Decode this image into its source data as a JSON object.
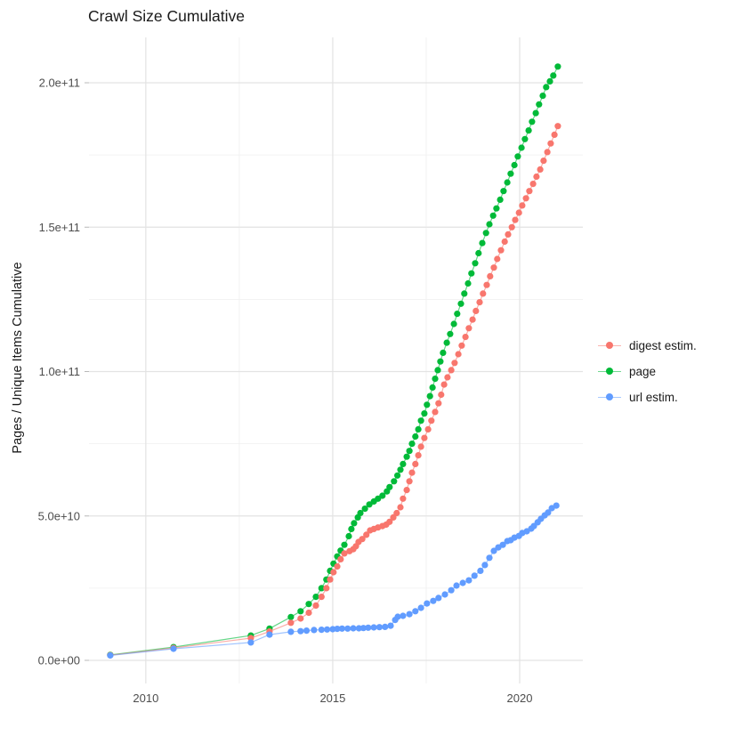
{
  "chart_data": {
    "type": "scatter",
    "title": "Crawl Size Cumulative",
    "xlabel": "",
    "ylabel": "Pages / Unique Items Cumulative",
    "legend_position": "right",
    "grid": true,
    "background": "#ffffff",
    "x_ticks": [
      2010,
      2015,
      2020
    ],
    "x_tick_labels": [
      "2010",
      "2015",
      "2020"
    ],
    "x_minor_ticks": [
      2012.5,
      2017.5
    ],
    "y_ticks_billions": [
      0,
      50,
      100,
      150,
      200
    ],
    "y_tick_labels": [
      "0.0e+00",
      "5.0e+10",
      "1.0e+11",
      "1.5e+11",
      "2.0e+11"
    ],
    "y_minor_ticks_billions": [
      25,
      75,
      125,
      175
    ],
    "xlim": [
      2008.48,
      2021.69
    ],
    "ylim_billions": [
      -6.16,
      215.72
    ],
    "y_unit": "billions (multiply by 1e9 for axis values)",
    "z_order": [
      "page",
      "digest estim.",
      "url estim."
    ],
    "series": [
      {
        "name": "digest estim.",
        "color": "#F8766D",
        "points_year_billion": [
          [
            2009.05,
            1.8
          ],
          [
            2010.74,
            4.3
          ],
          [
            2012.81,
            7.7
          ],
          [
            2013.31,
            10
          ],
          [
            2013.88,
            13
          ],
          [
            2014.14,
            14.5
          ],
          [
            2014.36,
            16.5
          ],
          [
            2014.55,
            19
          ],
          [
            2014.7,
            22
          ],
          [
            2014.83,
            25
          ],
          [
            2014.93,
            28
          ],
          [
            2015.02,
            30.5
          ],
          [
            2015.12,
            32.5
          ],
          [
            2015.21,
            35
          ],
          [
            2015.31,
            37
          ],
          [
            2015.45,
            37.8
          ],
          [
            2015.55,
            38.5
          ],
          [
            2015.62,
            39.5
          ],
          [
            2015.69,
            41
          ],
          [
            2015.79,
            42
          ],
          [
            2015.9,
            43.5
          ],
          [
            2016.0,
            45
          ],
          [
            2016.1,
            45.5
          ],
          [
            2016.21,
            46
          ],
          [
            2016.33,
            46.5
          ],
          [
            2016.43,
            47
          ],
          [
            2016.52,
            48
          ],
          [
            2016.62,
            49.5
          ],
          [
            2016.71,
            51
          ],
          [
            2016.81,
            53
          ],
          [
            2016.88,
            56
          ],
          [
            2016.98,
            59
          ],
          [
            2017.05,
            62
          ],
          [
            2017.12,
            65
          ],
          [
            2017.21,
            68
          ],
          [
            2017.29,
            71
          ],
          [
            2017.36,
            74
          ],
          [
            2017.45,
            77
          ],
          [
            2017.55,
            80
          ],
          [
            2017.64,
            83
          ],
          [
            2017.74,
            86
          ],
          [
            2017.83,
            89
          ],
          [
            2017.9,
            92
          ],
          [
            2017.98,
            95.5
          ],
          [
            2018.07,
            98
          ],
          [
            2018.17,
            100.5
          ],
          [
            2018.26,
            103
          ],
          [
            2018.36,
            106
          ],
          [
            2018.45,
            109
          ],
          [
            2018.55,
            112
          ],
          [
            2018.64,
            115
          ],
          [
            2018.74,
            118
          ],
          [
            2018.83,
            121
          ],
          [
            2018.93,
            124
          ],
          [
            2019.02,
            127
          ],
          [
            2019.12,
            130
          ],
          [
            2019.21,
            133
          ],
          [
            2019.31,
            136
          ],
          [
            2019.4,
            139
          ],
          [
            2019.5,
            142
          ],
          [
            2019.6,
            145
          ],
          [
            2019.69,
            147.5
          ],
          [
            2019.79,
            150
          ],
          [
            2019.88,
            152.5
          ],
          [
            2019.98,
            155
          ],
          [
            2020.07,
            157.5
          ],
          [
            2020.17,
            160
          ],
          [
            2020.26,
            162.5
          ],
          [
            2020.36,
            165
          ],
          [
            2020.45,
            167.5
          ],
          [
            2020.55,
            170
          ],
          [
            2020.64,
            173
          ],
          [
            2020.74,
            176
          ],
          [
            2020.83,
            179
          ],
          [
            2020.93,
            182
          ],
          [
            2021.02,
            185
          ]
        ]
      },
      {
        "name": "page",
        "color": "#00BA38",
        "points_year_billion": [
          [
            2009.05,
            1.9
          ],
          [
            2010.74,
            4.6
          ],
          [
            2012.81,
            8.6
          ],
          [
            2013.31,
            11
          ],
          [
            2013.88,
            15
          ],
          [
            2014.14,
            17
          ],
          [
            2014.36,
            19.5
          ],
          [
            2014.55,
            22
          ],
          [
            2014.7,
            25
          ],
          [
            2014.83,
            28
          ],
          [
            2014.93,
            31
          ],
          [
            2015.02,
            33.5
          ],
          [
            2015.12,
            36
          ],
          [
            2015.21,
            38
          ],
          [
            2015.31,
            40
          ],
          [
            2015.43,
            43
          ],
          [
            2015.5,
            45.5
          ],
          [
            2015.57,
            47.5
          ],
          [
            2015.67,
            49.5
          ],
          [
            2015.74,
            51
          ],
          [
            2015.86,
            52.5
          ],
          [
            2015.98,
            54
          ],
          [
            2016.1,
            55
          ],
          [
            2016.21,
            56
          ],
          [
            2016.33,
            57
          ],
          [
            2016.45,
            58.5
          ],
          [
            2016.52,
            60
          ],
          [
            2016.64,
            62
          ],
          [
            2016.73,
            64
          ],
          [
            2016.81,
            66
          ],
          [
            2016.88,
            68
          ],
          [
            2016.98,
            70.5
          ],
          [
            2017.05,
            72.5
          ],
          [
            2017.12,
            75
          ],
          [
            2017.21,
            77.5
          ],
          [
            2017.29,
            80
          ],
          [
            2017.36,
            83
          ],
          [
            2017.45,
            85.5
          ],
          [
            2017.52,
            88.5
          ],
          [
            2017.6,
            91.5
          ],
          [
            2017.67,
            94.5
          ],
          [
            2017.74,
            97.5
          ],
          [
            2017.81,
            100.5
          ],
          [
            2017.88,
            103.5
          ],
          [
            2017.95,
            106.5
          ],
          [
            2018.05,
            110
          ],
          [
            2018.14,
            113
          ],
          [
            2018.24,
            116.5
          ],
          [
            2018.33,
            120
          ],
          [
            2018.43,
            123.5
          ],
          [
            2018.52,
            127
          ],
          [
            2018.62,
            130.5
          ],
          [
            2018.71,
            134
          ],
          [
            2018.81,
            137.5
          ],
          [
            2018.9,
            141
          ],
          [
            2019.0,
            144.5
          ],
          [
            2019.1,
            148
          ],
          [
            2019.19,
            151
          ],
          [
            2019.29,
            154
          ],
          [
            2019.38,
            156.5
          ],
          [
            2019.48,
            159.5
          ],
          [
            2019.57,
            162.5
          ],
          [
            2019.67,
            165.5
          ],
          [
            2019.76,
            168.5
          ],
          [
            2019.86,
            171.5
          ],
          [
            2019.95,
            174.5
          ],
          [
            2020.05,
            177.5
          ],
          [
            2020.14,
            180.5
          ],
          [
            2020.24,
            183.5
          ],
          [
            2020.33,
            186.5
          ],
          [
            2020.43,
            189.5
          ],
          [
            2020.52,
            192.5
          ],
          [
            2020.62,
            195.5
          ],
          [
            2020.71,
            198.5
          ],
          [
            2020.81,
            200.5
          ],
          [
            2020.9,
            202.5
          ],
          [
            2021.02,
            205.6
          ]
        ]
      },
      {
        "name": "url estim.",
        "color": "#619CFF",
        "points_year_billion": [
          [
            2009.05,
            1.7
          ],
          [
            2010.74,
            4.0
          ],
          [
            2012.81,
            6.2
          ],
          [
            2013.31,
            8.9
          ],
          [
            2013.88,
            9.9
          ],
          [
            2014.14,
            10.1
          ],
          [
            2014.3,
            10.3
          ],
          [
            2014.5,
            10.5
          ],
          [
            2014.7,
            10.6
          ],
          [
            2014.85,
            10.7
          ],
          [
            2015.0,
            10.8
          ],
          [
            2015.12,
            10.9
          ],
          [
            2015.25,
            11.0
          ],
          [
            2015.4,
            11.0
          ],
          [
            2015.55,
            11.1
          ],
          [
            2015.7,
            11.1
          ],
          [
            2015.82,
            11.2
          ],
          [
            2015.95,
            11.3
          ],
          [
            2016.1,
            11.4
          ],
          [
            2016.25,
            11.5
          ],
          [
            2016.4,
            11.6
          ],
          [
            2016.55,
            12.0
          ],
          [
            2016.67,
            14.0
          ],
          [
            2016.74,
            15.1
          ],
          [
            2016.88,
            15.4
          ],
          [
            2017.05,
            16.0
          ],
          [
            2017.21,
            17.0
          ],
          [
            2017.36,
            18.2
          ],
          [
            2017.52,
            19.7
          ],
          [
            2017.69,
            20.6
          ],
          [
            2017.83,
            21.6
          ],
          [
            2018.0,
            22.8
          ],
          [
            2018.17,
            24.3
          ],
          [
            2018.31,
            25.9
          ],
          [
            2018.48,
            26.8
          ],
          [
            2018.64,
            27.7
          ],
          [
            2018.79,
            29.3
          ],
          [
            2018.95,
            31.0
          ],
          [
            2019.07,
            33.0
          ],
          [
            2019.19,
            35.5
          ],
          [
            2019.31,
            37.9
          ],
          [
            2019.43,
            39.1
          ],
          [
            2019.55,
            40.0
          ],
          [
            2019.67,
            41.3
          ],
          [
            2019.76,
            41.6
          ],
          [
            2019.86,
            42.5
          ],
          [
            2019.98,
            43.1
          ],
          [
            2020.07,
            44.1
          ],
          [
            2020.19,
            44.7
          ],
          [
            2020.31,
            45.6
          ],
          [
            2020.38,
            46.5
          ],
          [
            2020.48,
            47.8
          ],
          [
            2020.57,
            49.0
          ],
          [
            2020.67,
            50.2
          ],
          [
            2020.76,
            51.2
          ],
          [
            2020.86,
            52.7
          ],
          [
            2020.98,
            53.6
          ]
        ]
      }
    ]
  },
  "colors": {
    "grid_major": "#e3e3e3",
    "grid_minor": "#efefef",
    "tick_mark": "#b8b8b8",
    "tick_label": "#4d4d4d",
    "title_text": "#1a1a1a",
    "axis_title_text": "#1a1a1a"
  }
}
